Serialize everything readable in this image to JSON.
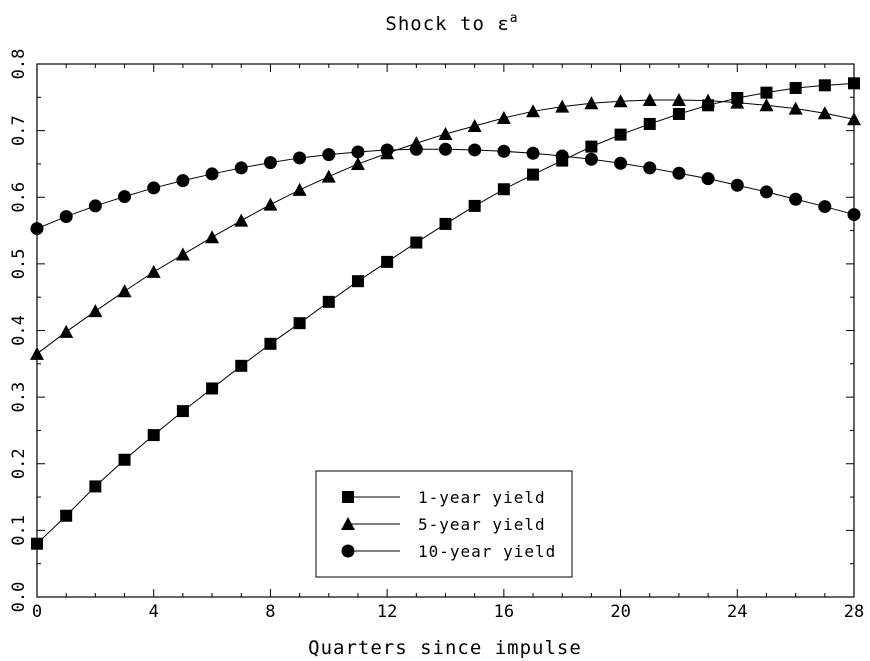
{
  "chart_data": {
    "type": "line",
    "title": "Shock to ε",
    "title_superscript": "a",
    "xlabel": "Quarters since impulse",
    "ylabel": "",
    "xlim": [
      0,
      28
    ],
    "ylim": [
      0.0,
      0.8
    ],
    "xticks": [
      "0",
      "4",
      "8",
      "12",
      "16",
      "20",
      "24",
      "28"
    ],
    "yticks": [
      "0.0",
      "0.1",
      "0.2",
      "0.3",
      "0.4",
      "0.5",
      "0.6",
      "0.7",
      "0.8"
    ],
    "grid": false,
    "legend_position": "bottom-center",
    "x": [
      0,
      1,
      2,
      3,
      4,
      5,
      6,
      7,
      8,
      9,
      10,
      11,
      12,
      13,
      14,
      15,
      16,
      17,
      18,
      19,
      20,
      21,
      22,
      23,
      24,
      25,
      26,
      27,
      28
    ],
    "series": [
      {
        "name": "1-year yield",
        "marker": "square",
        "values": [
          0.08,
          0.122,
          0.166,
          0.206,
          0.243,
          0.279,
          0.313,
          0.347,
          0.38,
          0.411,
          0.443,
          0.474,
          0.503,
          0.532,
          0.56,
          0.587,
          0.612,
          0.634,
          0.655,
          0.676,
          0.694,
          0.71,
          0.725,
          0.738,
          0.749,
          0.757,
          0.764,
          0.768,
          0.771
        ]
      },
      {
        "name": "5-year yield",
        "marker": "triangle",
        "values": [
          0.365,
          0.398,
          0.429,
          0.459,
          0.488,
          0.514,
          0.54,
          0.565,
          0.589,
          0.611,
          0.631,
          0.65,
          0.666,
          0.681,
          0.695,
          0.707,
          0.719,
          0.729,
          0.736,
          0.741,
          0.744,
          0.746,
          0.746,
          0.745,
          0.742,
          0.738,
          0.733,
          0.726,
          0.717
        ]
      },
      {
        "name": "10-year yield",
        "marker": "circle",
        "values": [
          0.553,
          0.571,
          0.587,
          0.601,
          0.614,
          0.625,
          0.635,
          0.644,
          0.652,
          0.659,
          0.664,
          0.668,
          0.671,
          0.672,
          0.672,
          0.671,
          0.669,
          0.666,
          0.662,
          0.657,
          0.651,
          0.644,
          0.636,
          0.628,
          0.618,
          0.608,
          0.597,
          0.586,
          0.574
        ]
      }
    ]
  }
}
